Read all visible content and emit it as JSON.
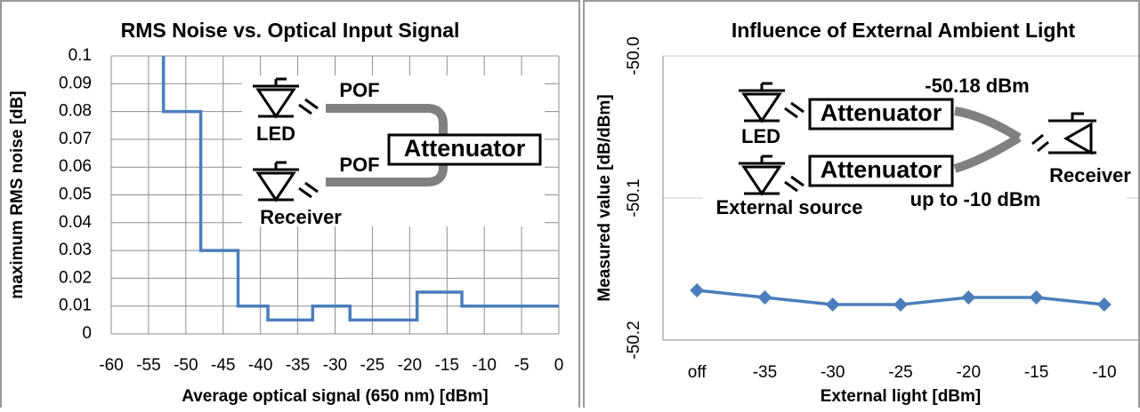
{
  "chart_data": [
    {
      "type": "line",
      "title": "RMS Noise vs. Optical Input Signal",
      "x_label": "Average optical signal (650 nm) [dBm]",
      "y_label": "maximum RMS noise [dB]",
      "x": [
        -53,
        -53,
        -48,
        -48,
        -43,
        -43,
        -39,
        -39,
        -33,
        -33,
        -28,
        -28,
        -19,
        -19,
        -13,
        -13,
        0
      ],
      "values": [
        0.1,
        0.08,
        0.08,
        0.03,
        0.03,
        0.01,
        0.01,
        0.005,
        0.005,
        0.01,
        0.01,
        0.005,
        0.005,
        0.015,
        0.015,
        0.01,
        0.01
      ],
      "color": "#4a7ebb",
      "xlim": [
        -60,
        0
      ],
      "xticks": [
        -60,
        -55,
        -50,
        -45,
        -40,
        -35,
        -30,
        -25,
        -20,
        -15,
        -10,
        -5,
        0
      ],
      "ylim": [
        0,
        0.1
      ],
      "yticks": [
        0,
        0.01,
        0.02,
        0.03,
        0.04,
        0.05,
        0.06,
        0.07,
        0.08,
        0.09,
        0.1
      ],
      "grid": true,
      "annotations": [
        "POF",
        "LED",
        "Attenuator",
        "POF",
        "Receiver"
      ]
    },
    {
      "type": "line",
      "title": "Influence of External Ambient Light",
      "x_label": "External light [dBm]",
      "y_label": "Measured value [dB/dBm]",
      "categories": [
        "off",
        "-35",
        "-30",
        "-25",
        "-20",
        "-15",
        "-10"
      ],
      "values": [
        -50.165,
        -50.17,
        -50.175,
        -50.175,
        -50.17,
        -50.17,
        -50.175
      ],
      "color": "#4a7ebb",
      "marker": "diamond",
      "ylim": [
        -50.2,
        -50.0
      ],
      "yticks": [
        {
          "value": -50.2,
          "label": "-50.2"
        },
        {
          "value": -50.1,
          "label": "-50.1"
        },
        {
          "value": -50.0,
          "label": "-50.0"
        }
      ],
      "grid": true,
      "annotations": [
        "-50.18 dBm",
        "Attenuator",
        "LED",
        "Attenuator",
        "External source",
        "up to -10 dBm",
        "Receiver"
      ]
    }
  ]
}
